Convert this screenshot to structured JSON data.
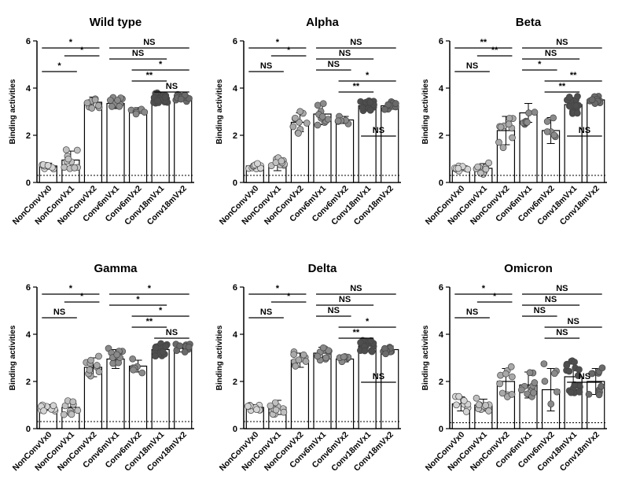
{
  "chart_data": [
    {
      "type": "bar",
      "title": "Wild type",
      "ylabel": "Binding activities",
      "ylim": [
        0,
        6
      ],
      "yticks": [
        "0",
        "2",
        "4",
        "6"
      ],
      "categories": [
        "NonConvVx0",
        "NonConvVx1",
        "NonConvVx2",
        "Conv6mVx1",
        "Conv6mVx2",
        "Conv18mVx1",
        "Conv18mVx2"
      ],
      "values": [
        0.7,
        0.95,
        3.4,
        3.35,
        3.05,
        3.6,
        3.62
      ],
      "errors": [
        0.12,
        0.38,
        0.22,
        0.22,
        0.12,
        0.2,
        0.15
      ],
      "threshold": 0.3,
      "comparisons": [
        {
          "from": 0,
          "to": 2,
          "label": "*"
        },
        {
          "from": 0,
          "to": 1,
          "label": "*"
        },
        {
          "from": 1,
          "to": 2,
          "label": "*"
        },
        {
          "from": 3,
          "to": 6,
          "label": "NS"
        },
        {
          "from": 3,
          "to": 5,
          "label": "NS"
        },
        {
          "from": 4,
          "to": 6,
          "label": "*"
        },
        {
          "from": 4,
          "to": 5,
          "label": "**"
        },
        {
          "from": 5,
          "to": 6,
          "label": "NS"
        }
      ]
    },
    {
      "type": "bar",
      "title": "Alpha",
      "ylabel": "Binding activities",
      "ylim": [
        0,
        6
      ],
      "yticks": [
        "0",
        "2",
        "4",
        "6"
      ],
      "categories": [
        "NonConvVx0",
        "NonConvVx1",
        "NonConvVx2",
        "Conv6mVx1",
        "Conv6mVx2",
        "Conv18mVx1",
        "Conv18mVx2"
      ],
      "values": [
        0.7,
        0.75,
        2.55,
        2.9,
        2.65,
        3.25,
        3.25
      ],
      "errors": [
        0.1,
        0.25,
        0.4,
        0.45,
        0.15,
        0.2,
        0.15
      ],
      "threshold": 0.3,
      "comparisons": [
        {
          "from": 0,
          "to": 2,
          "label": "*"
        },
        {
          "from": 0,
          "to": 1,
          "label": "NS"
        },
        {
          "from": 1,
          "to": 2,
          "label": "*"
        },
        {
          "from": 3,
          "to": 6,
          "label": "NS"
        },
        {
          "from": 3,
          "to": 5,
          "label": "NS"
        },
        {
          "from": 3,
          "to": 4,
          "label": "NS"
        },
        {
          "from": 4,
          "to": 6,
          "label": "*"
        },
        {
          "from": 4,
          "to": 5,
          "label": "**"
        },
        {
          "from": 5,
          "to": 6,
          "label": "NS"
        }
      ]
    },
    {
      "type": "bar",
      "title": "Beta",
      "ylabel": "Binding activities",
      "ylim": [
        0,
        6
      ],
      "yticks": [
        "0",
        "2",
        "4",
        "6"
      ],
      "categories": [
        "NonConvVx0",
        "NonConvVx1",
        "NonConvVx2",
        "Conv6mVx1",
        "Conv6mVx2",
        "Conv18mVx1",
        "Conv18mVx2"
      ],
      "values": [
        0.6,
        0.6,
        2.2,
        2.95,
        2.2,
        3.3,
        3.5
      ],
      "errors": [
        0.1,
        0.2,
        0.6,
        0.4,
        0.55,
        0.3,
        0.15
      ],
      "threshold": 0.3,
      "comparisons": [
        {
          "from": 0,
          "to": 2,
          "label": "**"
        },
        {
          "from": 0,
          "to": 1,
          "label": "NS"
        },
        {
          "from": 1,
          "to": 2,
          "label": "**"
        },
        {
          "from": 3,
          "to": 6,
          "label": "NS"
        },
        {
          "from": 3,
          "to": 5,
          "label": "NS"
        },
        {
          "from": 3,
          "to": 4,
          "label": "*"
        },
        {
          "from": 4,
          "to": 6,
          "label": "**"
        },
        {
          "from": 4,
          "to": 5,
          "label": "**"
        },
        {
          "from": 5,
          "to": 6,
          "label": "NS"
        }
      ]
    },
    {
      "type": "bar",
      "title": "Gamma",
      "ylabel": "Binding activities",
      "ylim": [
        0,
        6
      ],
      "yticks": [
        "0",
        "2",
        "4",
        "6"
      ],
      "categories": [
        "NonConvVx0",
        "NonConvVx1",
        "NonConvVx2",
        "Conv6mVx1",
        "Conv6mVx2",
        "Conv18mVx1",
        "Conv18mVx2"
      ],
      "values": [
        0.9,
        0.9,
        2.6,
        2.95,
        2.65,
        3.35,
        3.4
      ],
      "errors": [
        0.12,
        0.25,
        0.4,
        0.4,
        0.25,
        0.25,
        0.15
      ],
      "threshold": 0.3,
      "comparisons": [
        {
          "from": 0,
          "to": 2,
          "label": "*"
        },
        {
          "from": 0,
          "to": 1,
          "label": "NS"
        },
        {
          "from": 1,
          "to": 2,
          "label": "*"
        },
        {
          "from": 3,
          "to": 6,
          "label": "*"
        },
        {
          "from": 3,
          "to": 5,
          "label": "*"
        },
        {
          "from": 4,
          "to": 6,
          "label": "*"
        },
        {
          "from": 4,
          "to": 5,
          "label": "**"
        },
        {
          "from": 5,
          "to": 6,
          "label": "NS"
        }
      ]
    },
    {
      "type": "bar",
      "title": "Delta",
      "ylabel": "Binding activities",
      "ylim": [
        0,
        6
      ],
      "yticks": [
        "0",
        "2",
        "4",
        "6"
      ],
      "categories": [
        "NonConvVx0",
        "NonConvVx1",
        "NonConvVx2",
        "Conv6mVx1",
        "Conv6mVx2",
        "Conv18mVx1",
        "Conv18mVx2"
      ],
      "values": [
        0.9,
        0.9,
        2.9,
        3.2,
        2.95,
        3.5,
        3.35
      ],
      "errors": [
        0.12,
        0.3,
        0.3,
        0.25,
        0.12,
        0.2,
        0.15
      ],
      "threshold": 0.3,
      "comparisons": [
        {
          "from": 0,
          "to": 2,
          "label": "*"
        },
        {
          "from": 0,
          "to": 1,
          "label": "NS"
        },
        {
          "from": 1,
          "to": 2,
          "label": "*"
        },
        {
          "from": 3,
          "to": 6,
          "label": "NS"
        },
        {
          "from": 3,
          "to": 5,
          "label": "NS"
        },
        {
          "from": 3,
          "to": 4,
          "label": "NS"
        },
        {
          "from": 4,
          "to": 6,
          "label": "*"
        },
        {
          "from": 4,
          "to": 5,
          "label": "**"
        },
        {
          "from": 5,
          "to": 6,
          "label": "NS"
        }
      ]
    },
    {
      "type": "bar",
      "title": "Omicron",
      "ylabel": "Binding activities",
      "ylim": [
        0,
        6
      ],
      "yticks": [
        "0",
        "2",
        "4",
        "6"
      ],
      "categories": [
        "NonConvVx0",
        "NonConvVx1",
        "NonConvVx2",
        "Conv6mVx1",
        "Conv6mVx2",
        "Conv18mVx1",
        "Conv18mVx2"
      ],
      "values": [
        1.05,
        1.0,
        2.0,
        1.85,
        1.65,
        2.2,
        2.0
      ],
      "errors": [
        0.3,
        0.25,
        0.55,
        0.55,
        0.9,
        0.55,
        0.55
      ],
      "threshold": 0.25,
      "comparisons": [
        {
          "from": 0,
          "to": 2,
          "label": "*"
        },
        {
          "from": 0,
          "to": 1,
          "label": "NS"
        },
        {
          "from": 1,
          "to": 2,
          "label": "*"
        },
        {
          "from": 3,
          "to": 6,
          "label": "NS"
        },
        {
          "from": 3,
          "to": 5,
          "label": "NS"
        },
        {
          "from": 3,
          "to": 4,
          "label": "NS"
        },
        {
          "from": 4,
          "to": 6,
          "label": "NS"
        },
        {
          "from": 4,
          "to": 5,
          "label": "NS"
        },
        {
          "from": 5,
          "to": 6,
          "label": "NS"
        }
      ]
    }
  ]
}
